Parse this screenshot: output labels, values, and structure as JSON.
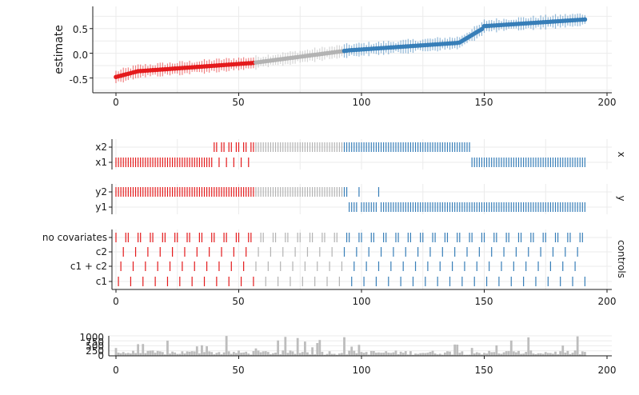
{
  "chart_data": {
    "type": "specification-curve",
    "n_specifications": 192,
    "colors": {
      "negative": "#e41a1c",
      "neutral": "#b3b3b3",
      "positive": "#377eb8",
      "grid": "#ebebeb",
      "axis": "#1a1a1a",
      "bars": "#bdbdbd"
    },
    "x_ticks": [
      "0",
      "50",
      "100",
      "150",
      "200"
    ],
    "estimate_panel": {
      "ylabel": "estimate",
      "y_ticks": [
        "0.5",
        "0.0",
        "-0.5"
      ],
      "ylim": [
        -0.8,
        0.95
      ],
      "grid": true
    },
    "choice_panels": [
      {
        "label": "x",
        "rows": [
          "x2",
          "x1"
        ]
      },
      {
        "label": "y",
        "rows": [
          "y2",
          "y1"
        ]
      },
      {
        "label": "controls",
        "rows": [
          "no covariates",
          "c2",
          "c1 + c2",
          "c1"
        ]
      }
    ],
    "count_panel": {
      "y_ticks": [
        "1000",
        "750",
        "500",
        "250",
        "0"
      ],
      "ylim": [
        0,
        1000
      ]
    }
  }
}
